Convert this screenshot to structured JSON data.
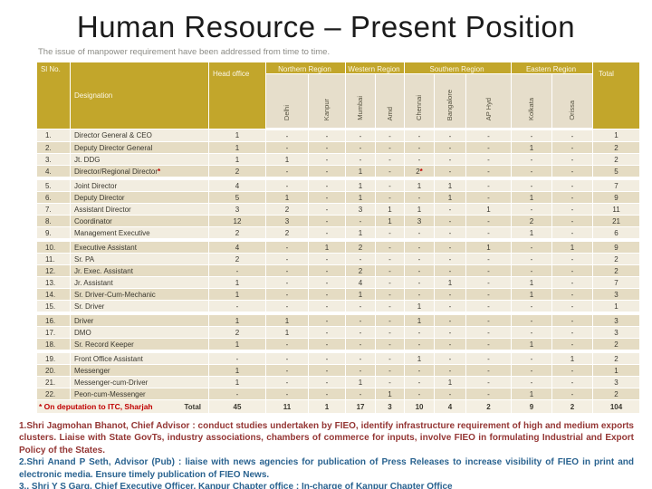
{
  "slide": {
    "title": "Human Resource – Present Position",
    "subtitle": "The issue of manpower requirement have been addressed from time to time."
  },
  "colors": {
    "header_olive": "#C2A62B",
    "subheader_beige": "#E6DECB",
    "row_light": "#F2EDE0",
    "row_dark": "#E5DCC3",
    "asterisk_red": "#C00000",
    "note_maroon": "#943634",
    "note_blue": "#2A6390"
  },
  "table": {
    "header": {
      "sl_no": "Sl No.",
      "designation": "Designation",
      "head_office": "Head office",
      "regions": [
        {
          "label": "Northern Region",
          "cities": [
            "Delhi",
            "Kanpur"
          ]
        },
        {
          "label": "Western Region",
          "cities": [
            "Mumbai",
            "Amd"
          ]
        },
        {
          "label": "Southern Region",
          "cities": [
            "Chennai",
            "Bangalore",
            "AP Hyd"
          ]
        },
        {
          "label": "Eastern Region",
          "cities": [
            "Kolkata",
            "Orissa"
          ]
        }
      ],
      "total": "Total"
    },
    "value_columns": [
      "Head office",
      "Delhi",
      "Kanpur",
      "Mumbai",
      "Amd",
      "Chennai",
      "Bangalore",
      "AP Hyd",
      "Kolkata",
      "Orissa",
      "Total"
    ],
    "rows": [
      {
        "no": "1.",
        "designation": "Director General & CEO",
        "values": [
          "1",
          "-",
          "-",
          "-",
          "-",
          "-",
          "-",
          "-",
          "-",
          "-",
          "1"
        ]
      },
      {
        "no": "2.",
        "designation": "Deputy Director General",
        "values": [
          "1",
          "-",
          "-",
          "-",
          "-",
          "-",
          "-",
          "-",
          "1",
          "-",
          "2"
        ]
      },
      {
        "no": "3.",
        "designation": "Jt. DDG",
        "values": [
          "1",
          "1",
          "-",
          "-",
          "-",
          "-",
          "-",
          "-",
          "-",
          "-",
          "2"
        ]
      },
      {
        "no": "4.",
        "designation": "Director/Regional Director*",
        "values": [
          "2",
          "-",
          "-",
          "1",
          "-",
          "2*",
          "-",
          "-",
          "-",
          "-",
          "5"
        ],
        "gap_after": true
      },
      {
        "no": "5.",
        "designation": "Joint Director",
        "values": [
          "4",
          "-",
          "-",
          "1",
          "-",
          "1",
          "1",
          "-",
          "-",
          "-",
          "7"
        ]
      },
      {
        "no": "6.",
        "designation": "Deputy Director",
        "values": [
          "5",
          "1",
          "-",
          "1",
          "-",
          "-",
          "1",
          "-",
          "1",
          "-",
          "9"
        ]
      },
      {
        "no": "7.",
        "designation": "Assistant Director",
        "values": [
          "3",
          "2",
          "-",
          "3",
          "1",
          "1",
          "-",
          "1",
          "-",
          "-",
          "11"
        ]
      },
      {
        "no": "8.",
        "designation": "Coordinator",
        "values": [
          "12",
          "3",
          "-",
          "-",
          "1",
          "3",
          "-",
          "-",
          "2",
          "-",
          "21"
        ]
      },
      {
        "no": "9.",
        "designation": "Management Executive",
        "values": [
          "2",
          "2",
          "-",
          "1",
          "-",
          "-",
          "-",
          "-",
          "1",
          "-",
          "6"
        ],
        "gap_after": true
      },
      {
        "no": "10.",
        "designation": "Executive Assistant",
        "values": [
          "4",
          "-",
          "1",
          "2",
          "-",
          "-",
          "-",
          "1",
          "-",
          "1",
          "9"
        ]
      },
      {
        "no": "11.",
        "designation": "Sr. PA",
        "values": [
          "2",
          "-",
          "-",
          "-",
          "-",
          "-",
          "-",
          "-",
          "-",
          "-",
          "2"
        ]
      },
      {
        "no": "12.",
        "designation": "Jr. Exec. Assistant",
        "values": [
          "-",
          "-",
          "-",
          "2",
          "-",
          "-",
          "-",
          "-",
          "-",
          "-",
          "2"
        ]
      },
      {
        "no": "13.",
        "designation": "Jr. Assistant",
        "values": [
          "1",
          "-",
          "-",
          "4",
          "-",
          "-",
          "1",
          "-",
          "1",
          "-",
          "7"
        ]
      },
      {
        "no": "14.",
        "designation": "Sr. Driver-Cum-Mechanic",
        "values": [
          "1",
          "-",
          "-",
          "1",
          "-",
          "-",
          "-",
          "-",
          "1",
          "-",
          "3"
        ]
      },
      {
        "no": "15.",
        "designation": "Sr. Driver",
        "values": [
          "-",
          "-",
          "-",
          "-",
          "-",
          "1",
          "-",
          "-",
          "-",
          "-",
          "1"
        ],
        "gap_after": true
      },
      {
        "no": "16.",
        "designation": "Driver",
        "values": [
          "1",
          "1",
          "-",
          "-",
          "-",
          "1",
          "-",
          "-",
          "-",
          "-",
          "3"
        ]
      },
      {
        "no": "17.",
        "designation": "DMO",
        "values": [
          "2",
          "1",
          "-",
          "-",
          "-",
          "-",
          "-",
          "-",
          "-",
          "-",
          "3"
        ]
      },
      {
        "no": "18.",
        "designation": "Sr. Record Keeper",
        "values": [
          "1",
          "-",
          "-",
          "-",
          "-",
          "-",
          "-",
          "-",
          "1",
          "-",
          "2"
        ],
        "gap_after": true
      },
      {
        "no": "19.",
        "designation": "Front Office Assistant",
        "values": [
          "-",
          "-",
          "-",
          "-",
          "-",
          "1",
          "-",
          "-",
          "-",
          "1",
          "2"
        ]
      },
      {
        "no": "20.",
        "designation": "Messenger",
        "values": [
          "1",
          "-",
          "-",
          "-",
          "-",
          "-",
          "-",
          "-",
          "-",
          "-",
          "1"
        ]
      },
      {
        "no": "21.",
        "designation": "Messenger-cum-Driver",
        "values": [
          "1",
          "-",
          "-",
          "1",
          "-",
          "-",
          "1",
          "-",
          "-",
          "-",
          "3"
        ]
      },
      {
        "no": "22.",
        "designation": "Peon-cum-Messenger",
        "values": [
          "-",
          "-",
          "-",
          "-",
          "1",
          "-",
          "-",
          "-",
          "1",
          "-",
          "2"
        ]
      }
    ],
    "footnote": "* On deputation to ITC, Sharjah",
    "total_row": {
      "label": "Total",
      "values": [
        "45",
        "11",
        "1",
        "17",
        "3",
        "10",
        "4",
        "2",
        "9",
        "2",
        "104"
      ]
    }
  },
  "notes": [
    "1.Shri Jagmohan Bhanot, Chief Advisor : conduct studies undertaken by FIEO, identify infrastructure requirement of high and medium exports clusters. Liaise with State GovTs, industry associations, chambers of commerce for inputs, involve FIEO in formulating Industrial and Export Policy of the States.",
    "2.Shri Anand P Seth, Advisor (Pub) : liaise with news agencies for publication of Press Releases to increase visibility of FIEO in print and electronic media. Ensure timely publication of FIEO News.",
    "3.. Shri Y S Garg, Chief Executive Officer, Kanpur Chapter office : In-charge of Kanpur Chapter Office"
  ]
}
